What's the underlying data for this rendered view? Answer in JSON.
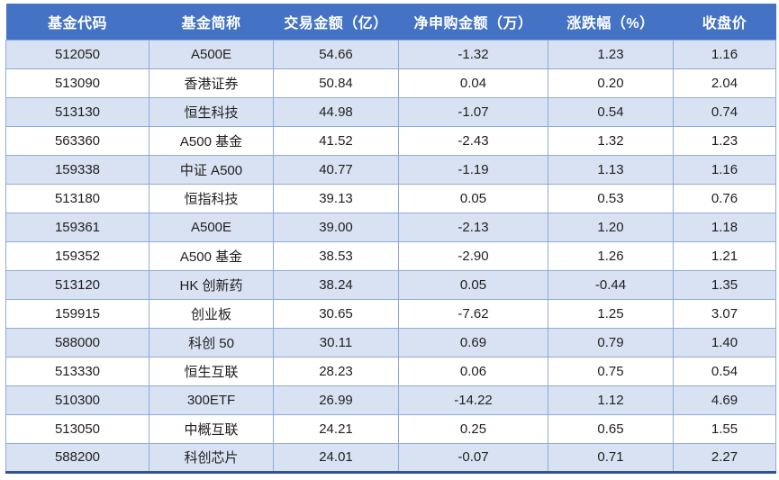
{
  "table": {
    "columns": [
      "基金代码",
      "基金简称",
      "交易金额（亿）",
      "净申购金额（万）",
      "涨跌幅（%）",
      "收盘价"
    ],
    "rows": [
      [
        "512050",
        "A500E",
        "54.66",
        "-1.32",
        "1.23",
        "1.16"
      ],
      [
        "513090",
        "香港证券",
        "50.84",
        "0.04",
        "0.20",
        "2.04"
      ],
      [
        "513130",
        "恒生科技",
        "44.98",
        "-1.07",
        "0.54",
        "0.74"
      ],
      [
        "563360",
        "A500 基金",
        "41.52",
        "-2.43",
        "1.32",
        "1.23"
      ],
      [
        "159338",
        "中证 A500",
        "40.77",
        "-1.19",
        "1.13",
        "1.16"
      ],
      [
        "513180",
        "恒指科技",
        "39.13",
        "0.05",
        "0.53",
        "0.76"
      ],
      [
        "159361",
        "A500E",
        "39.00",
        "-2.13",
        "1.20",
        "1.18"
      ],
      [
        "159352",
        "A500 基金",
        "38.53",
        "-2.90",
        "1.26",
        "1.21"
      ],
      [
        "513120",
        "HK 创新药",
        "38.24",
        "0.05",
        "-0.44",
        "1.35"
      ],
      [
        "159915",
        "创业板",
        "30.65",
        "-7.62",
        "1.25",
        "3.07"
      ],
      [
        "588000",
        "科创 50",
        "30.11",
        "0.69",
        "0.79",
        "1.40"
      ],
      [
        "513330",
        "恒生互联",
        "28.23",
        "0.06",
        "0.75",
        "0.54"
      ],
      [
        "510300",
        "300ETF",
        "26.99",
        "-14.22",
        "1.12",
        "4.69"
      ],
      [
        "513050",
        "中概互联",
        "24.21",
        "0.25",
        "0.65",
        "1.55"
      ],
      [
        "588200",
        "科创芯片",
        "24.01",
        "-0.07",
        "0.71",
        "2.27"
      ]
    ]
  },
  "colors": {
    "header_bg": "#4472C4",
    "header_text": "#FFFFFF",
    "row_bg": "#FFFFFF",
    "row_alt_bg": "#D9E2F3",
    "grid_line": "#8EAADB",
    "bottom_rule": "#2F5496",
    "cell_text": "#1F1F1F"
  }
}
